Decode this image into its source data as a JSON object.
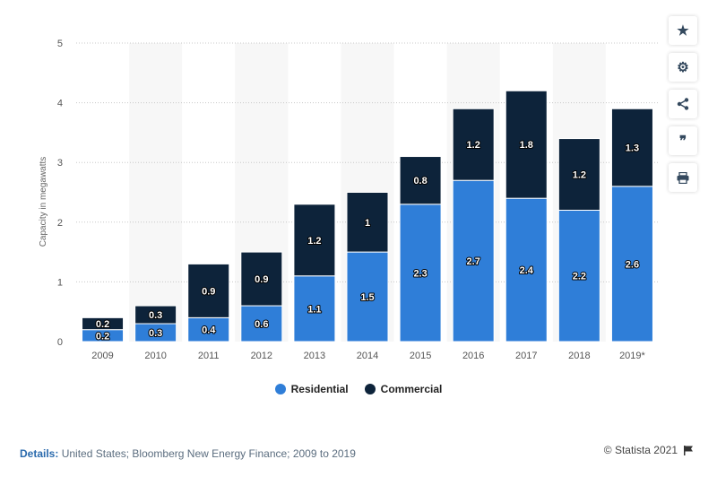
{
  "chart_data": {
    "type": "bar",
    "stacked": true,
    "categories": [
      "2009",
      "2010",
      "2011",
      "2012",
      "2013",
      "2014",
      "2015",
      "2016",
      "2017",
      "2018",
      "2019*"
    ],
    "series": [
      {
        "name": "Residential",
        "color": "#2f7ed8",
        "values": [
          0.2,
          0.3,
          0.4,
          0.6,
          1.1,
          1.5,
          2.3,
          2.7,
          2.4,
          2.2,
          2.6
        ]
      },
      {
        "name": "Commercial",
        "color": "#0d233a",
        "values": [
          0.2,
          0.3,
          0.9,
          0.9,
          1.2,
          1,
          0.8,
          1.2,
          1.8,
          1.2,
          1.3
        ]
      }
    ],
    "ylabel": "Capacity in megawatts",
    "ylim": [
      0,
      5
    ],
    "yticks": [
      0,
      1,
      2,
      3,
      4,
      5
    ],
    "grid": true,
    "legend_position": "bottom"
  },
  "toolbar": {
    "icons": [
      "star-icon",
      "gear-icon",
      "share-icon",
      "quote-icon",
      "print-icon"
    ]
  },
  "footer": {
    "details_label": "Details:",
    "details_text": "United States; Bloomberg New Energy Finance; 2009 to 2019",
    "credit": "© Statista 2021"
  }
}
